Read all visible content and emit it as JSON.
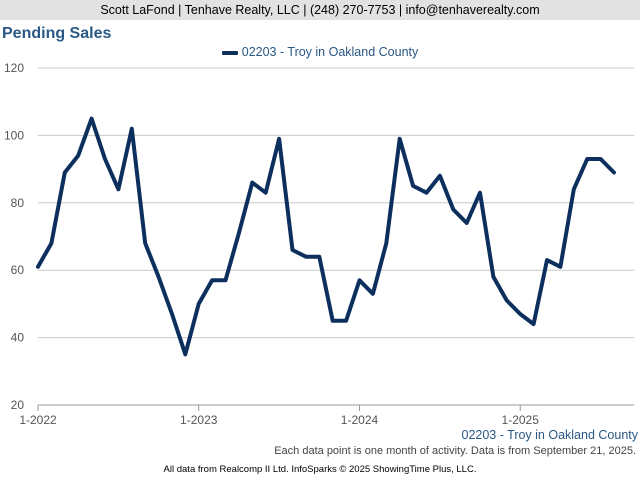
{
  "header": {
    "contact": "Scott LaFond | Tenhave Realty, LLC | (248) 270-7753 | info@tenhaverealty.com"
  },
  "footer": {
    "series_label": "02203 - Troy in Oakland County",
    "note": "Each data point is one month of activity. Data is from September 21, 2025.",
    "credit": "All data from Realcomp II Ltd. InfoSparks © 2025 ShowingTime Plus, LLC."
  },
  "colors": {
    "line": "#0d2f5e",
    "title": "#2a5885",
    "grid": "#c8c8c8"
  },
  "chart_data": {
    "type": "line",
    "title": "Pending Sales",
    "xlabel": "",
    "ylabel": "",
    "ylim": [
      20,
      120
    ],
    "yticks": [
      20,
      40,
      60,
      80,
      100,
      120
    ],
    "xticks": [
      "1-2022",
      "1-2023",
      "1-2024",
      "1-2025"
    ],
    "grid": true,
    "legend_position": "top-center",
    "x": [
      "2022-01",
      "2022-02",
      "2022-03",
      "2022-04",
      "2022-05",
      "2022-06",
      "2022-07",
      "2022-08",
      "2022-09",
      "2022-10",
      "2022-11",
      "2022-12",
      "2023-01",
      "2023-02",
      "2023-03",
      "2023-04",
      "2023-05",
      "2023-06",
      "2023-07",
      "2023-08",
      "2023-09",
      "2023-10",
      "2023-11",
      "2023-12",
      "2024-01",
      "2024-02",
      "2024-03",
      "2024-04",
      "2024-05",
      "2024-06",
      "2024-07",
      "2024-08",
      "2024-09",
      "2024-10",
      "2024-11",
      "2024-12",
      "2025-01",
      "2025-02",
      "2025-03",
      "2025-04",
      "2025-05",
      "2025-06",
      "2025-07",
      "2025-08"
    ],
    "series": [
      {
        "name": "02203 - Troy in Oakland County",
        "values": [
          61,
          68,
          89,
          94,
          105,
          93,
          84,
          102,
          68,
          58,
          47,
          35,
          50,
          57,
          57,
          71,
          86,
          83,
          99,
          66,
          64,
          64,
          45,
          45,
          57,
          53,
          68,
          99,
          85,
          83,
          88,
          78,
          74,
          83,
          58,
          51,
          47,
          44,
          63,
          61,
          84,
          93,
          93,
          89
        ]
      }
    ]
  }
}
